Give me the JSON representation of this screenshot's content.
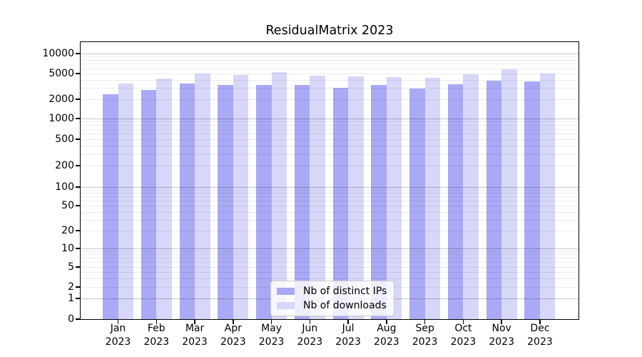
{
  "figure": {
    "title": "ResidualMatrix 2023"
  },
  "chart_data": {
    "type": "bar",
    "title": "ResidualMatrix 2023",
    "year": "2023",
    "months": [
      "Jan",
      "Feb",
      "Mar",
      "Apr",
      "May",
      "Jun",
      "Jul",
      "Aug",
      "Sep",
      "Oct",
      "Nov",
      "Dec"
    ],
    "categories": [
      "Jan 2023",
      "Feb 2023",
      "Mar 2023",
      "Apr 2023",
      "May 2023",
      "Jun 2023",
      "Jul 2023",
      "Aug 2023",
      "Sep 2023",
      "Oct 2023",
      "Nov 2023",
      "Dec 2023"
    ],
    "series": [
      {
        "name": "Nb of distinct IPs",
        "color": "#a9a9f6",
        "values": [
          2400,
          2800,
          3500,
          3300,
          3350,
          3300,
          3000,
          3300,
          2950,
          3450,
          3900,
          3800
        ]
      },
      {
        "name": "Nb of downloads",
        "color": "#d7d7f9",
        "values": [
          3500,
          4200,
          5000,
          4800,
          5200,
          4650,
          4550,
          4450,
          4300,
          4850,
          5850,
          5000
        ]
      }
    ],
    "yscale": "symlog",
    "ylim": [
      0,
      15000
    ],
    "y_tick_values": [
      0,
      1,
      2,
      5,
      10,
      20,
      50,
      100,
      200,
      500,
      1000,
      2000,
      5000,
      10000
    ],
    "y_tick_labels": [
      "0",
      "1",
      "2",
      "5",
      "10",
      "20",
      "50",
      "100",
      "200",
      "500",
      "1000",
      "2000",
      "5000",
      "10000"
    ],
    "grid": true,
    "legend": {
      "position": "lower-center",
      "items": [
        "Nb of distinct IPs",
        "Nb of downloads"
      ]
    }
  }
}
